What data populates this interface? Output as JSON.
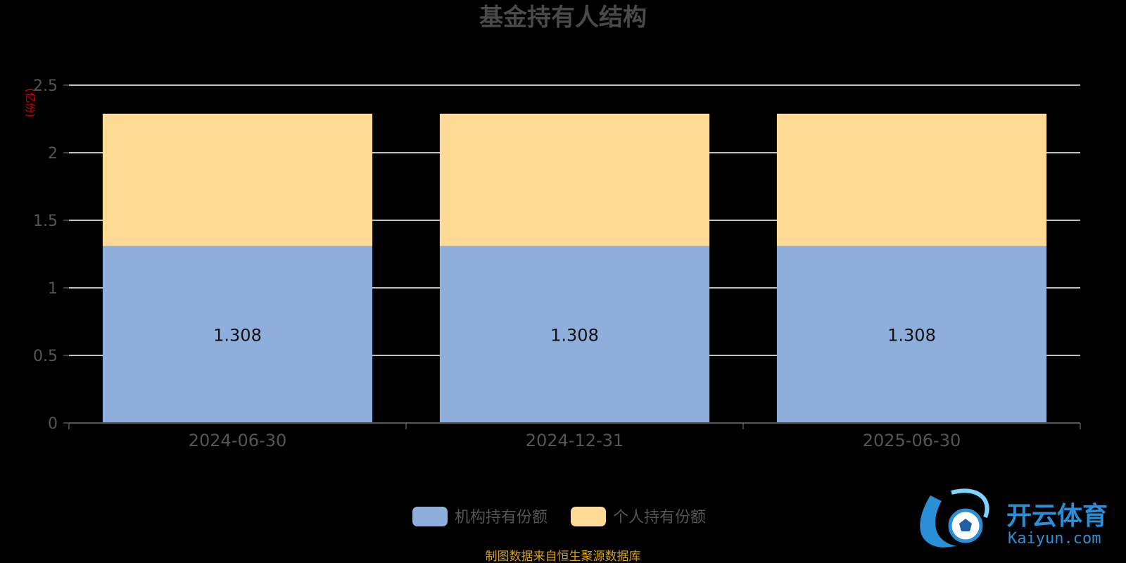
{
  "title": "基金持有人结构",
  "source": "制图数据来自恒生聚源数据库",
  "watermark": {
    "brand": "开云体育",
    "url": "Kaiyun.com",
    "colors": {
      "primary": "#2a8fd6",
      "accent": "#7fd3ff"
    }
  },
  "chart_data": {
    "type": "bar",
    "stacked": true,
    "title": "基金持有人结构",
    "unit_label": "(亿份)",
    "categories": [
      "2024-06-30",
      "2024-12-31",
      "2025-06-30"
    ],
    "series": [
      {
        "name": "机构持有份额",
        "color": "#8eaedc",
        "values": [
          1.308,
          1.308,
          1.308
        ],
        "data_labels": [
          "1.308",
          "1.308",
          "1.308"
        ]
      },
      {
        "name": "个人持有份额",
        "color": "#ffd996",
        "values": [
          0.98,
          0.98,
          0.98
        ]
      }
    ],
    "ylim": [
      0,
      2.5
    ],
    "yticks": [
      "0",
      "0.5",
      "1",
      "1.5",
      "2",
      "2.5"
    ],
    "grid": true,
    "legend_position": "bottom"
  }
}
